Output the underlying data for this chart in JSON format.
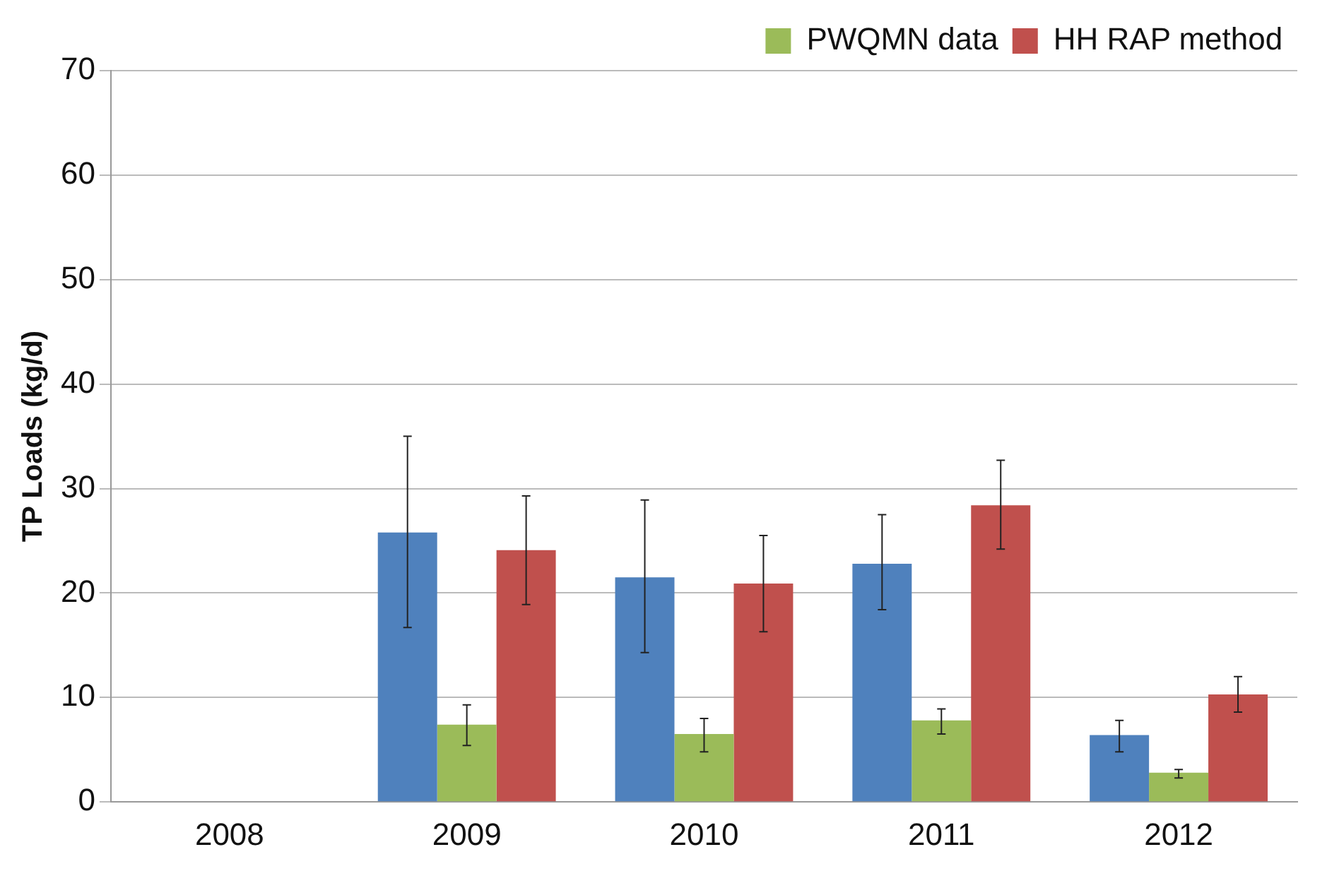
{
  "chart_data": {
    "type": "bar",
    "ylabel": "TP Loads (kg/d)",
    "categories": [
      "2008",
      "2009",
      "2010",
      "2011",
      "2012"
    ],
    "series": [
      {
        "color": "#4f81bd",
        "values": [
          null,
          25.8,
          21.5,
          22.8,
          6.4
        ],
        "errors": [
          null,
          [
            16.7,
            35.0
          ],
          [
            14.3,
            28.9
          ],
          [
            18.4,
            27.5
          ],
          [
            4.8,
            7.8
          ]
        ]
      },
      {
        "name": "PWQMN data",
        "color": "#9bbb59",
        "values": [
          null,
          7.4,
          6.5,
          7.8,
          2.8
        ],
        "errors": [
          null,
          [
            5.4,
            9.3
          ],
          [
            4.8,
            8.0
          ],
          [
            6.5,
            8.9
          ],
          [
            2.3,
            3.1
          ]
        ]
      },
      {
        "name": "HH RAP method",
        "color": "#c0504d",
        "values": [
          null,
          24.1,
          20.9,
          28.4,
          10.3
        ],
        "errors": [
          null,
          [
            18.9,
            29.3
          ],
          [
            16.3,
            25.5
          ],
          [
            24.2,
            32.7
          ],
          [
            8.6,
            12.0
          ]
        ]
      }
    ],
    "ylim": [
      0,
      70
    ],
    "yticks": [
      0,
      10,
      20,
      30,
      40,
      50,
      60,
      70
    ],
    "grid": "y",
    "legend": "top right"
  }
}
